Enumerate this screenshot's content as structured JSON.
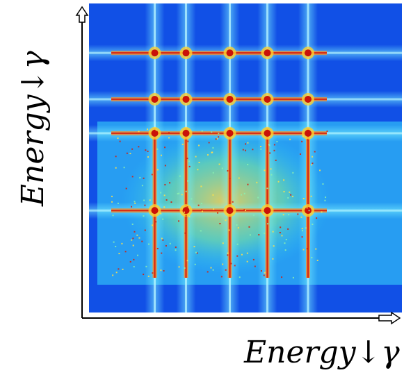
{
  "chart_data": {
    "type": "heatmap",
    "title": "",
    "xlabel": "Energy↓γ",
    "ylabel": "Energy↓γ",
    "colormap": "jet",
    "grid": false,
    "legend": "none",
    "features": {
      "background_level": "low (blue)",
      "central_block": "mid-to-high intensity (cyan/yellow) with red cross-lines",
      "x_line_energies_relative": [
        0.21,
        0.31,
        0.45,
        0.57,
        0.7
      ],
      "y_line_energies_relative": [
        0.33,
        0.58,
        0.69,
        0.84
      ]
    }
  },
  "colors": {
    "axis": "#000000",
    "arrow_fill": "#ffffff"
  }
}
